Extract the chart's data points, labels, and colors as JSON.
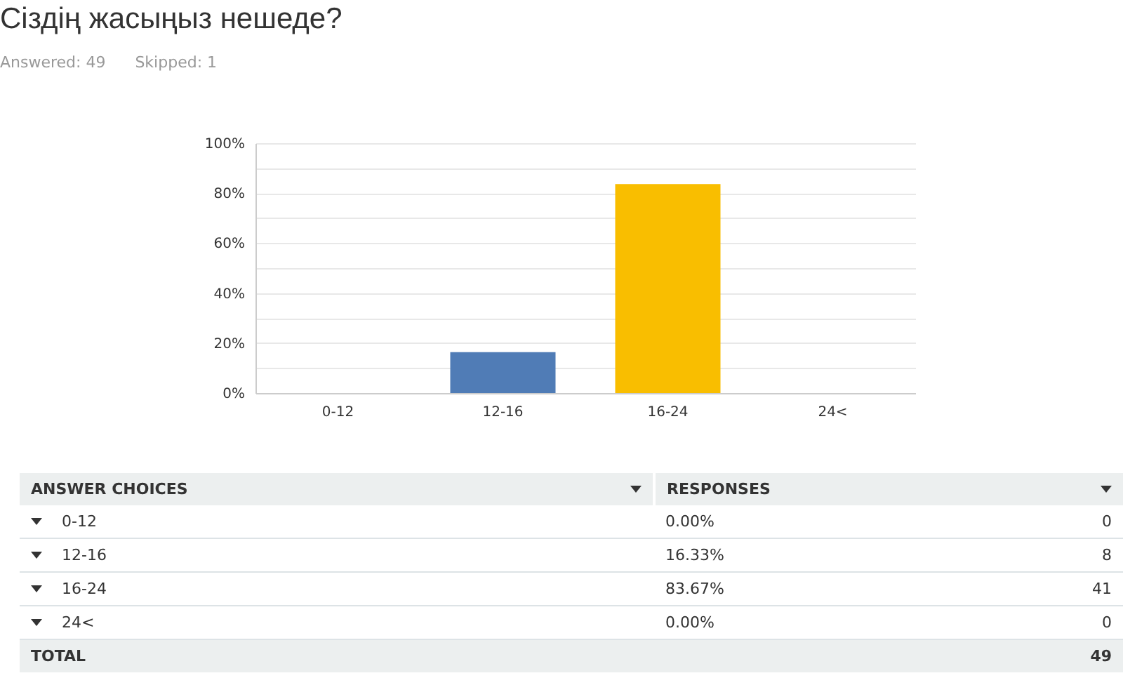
{
  "chart_data": {
    "type": "bar",
    "title": "Сіздің жасыңыз нешеде?",
    "subtitle": "Answered: 49      Skipped: 1",
    "categories": [
      "0-12",
      "12-16",
      "16-24",
      "24<"
    ],
    "values": [
      0,
      16.33,
      83.67,
      0
    ],
    "colors": [
      "#6bc8cd",
      "#507cb6",
      "#f9be00",
      "#7fb84f"
    ],
    "ylim": [
      0,
      100
    ],
    "yticks": [
      {
        "value": 0,
        "label": "0%"
      },
      {
        "value": 10,
        "label": null
      },
      {
        "value": 20,
        "label": "20%"
      },
      {
        "value": 30,
        "label": null
      },
      {
        "value": 40,
        "label": "40%"
      },
      {
        "value": 50,
        "label": null
      },
      {
        "value": 60,
        "label": "60%"
      },
      {
        "value": 70,
        "label": null
      },
      {
        "value": 80,
        "label": "80%"
      },
      {
        "value": 90,
        "label": null
      },
      {
        "value": 100,
        "label": "100%"
      }
    ],
    "grid": true,
    "annotations": [
      "ANSWER CHOICES",
      "RESPONSES",
      "0.00%",
      "0",
      "16.33%",
      "8",
      "83.67%",
      "41",
      "0.00%",
      "0",
      "TOTAL",
      "49"
    ]
  }
}
